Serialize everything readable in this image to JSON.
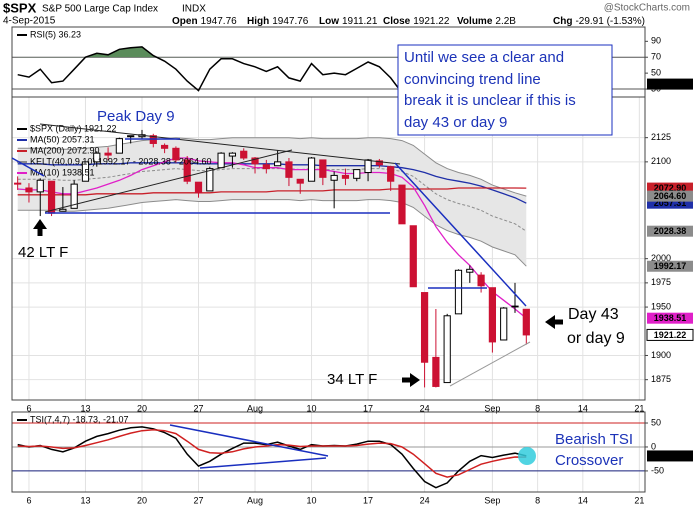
{
  "header": {
    "symbol": "$SPX",
    "name": "S&P 500 Large Cap Index",
    "exchange": "INDX",
    "source": "@StockCharts.com",
    "date": "4-Sep-2015",
    "quote": [
      {
        "label": "Open",
        "value": "1947.76"
      },
      {
        "label": "High",
        "value": "1947.76"
      },
      {
        "label": "Low",
        "value": "1911.21"
      },
      {
        "label": "Close",
        "value": "1921.22"
      },
      {
        "label": "Volume",
        "value": "2.2B"
      },
      {
        "label": "Chg",
        "value": "-29.91 (-1.53%)"
      }
    ]
  },
  "annotations": {
    "peak": "Peak Day 9",
    "left": "42 LT F",
    "bottom": "34 LT F",
    "right": [
      "Day 43",
      "or day 9"
    ],
    "box": [
      "Until we see a clear and",
      "convincing trend line",
      "break it is unclear if this is",
      "day 43 or day 9"
    ],
    "tsi": [
      "Bearish TSI",
      "Crossover"
    ]
  },
  "chart_data": [
    {
      "type": "line",
      "ylim": [
        20,
        108
      ],
      "yticks": [
        90,
        70,
        50,
        30
      ],
      "grid": false,
      "reference_lines": [
        {
          "value": 70,
          "color": "#555555",
          "fill": "#5b8c5b",
          "side": "above"
        },
        {
          "value": 30,
          "color": "#555555",
          "fill": "#a04e4e",
          "side": "below"
        }
      ],
      "series": [
        {
          "name": "RSI(5) 36.23",
          "color": "#000000",
          "end_label": "36.23",
          "values": [
            48,
            45,
            55,
            38,
            40,
            55,
            70,
            75,
            73,
            80,
            82,
            83,
            72,
            65,
            55,
            40,
            28,
            55,
            68,
            68,
            62,
            58,
            52,
            58,
            44,
            40,
            62,
            48,
            50,
            48,
            56,
            64,
            58,
            44,
            25,
            22,
            22,
            24,
            35,
            52,
            53,
            45,
            28,
            43,
            44,
            36.23
          ]
        }
      ]
    },
    {
      "type": "candlestick",
      "legend_label": "$SPX (Daily) 1921.22",
      "close_label": "1921.22",
      "ylim": [
        1854,
        2167
      ],
      "yticks": [
        2125,
        2100,
        2000,
        1975,
        1950,
        1900,
        1875
      ],
      "grid": true,
      "up_color": "#000000",
      "down_color": "#cc1133",
      "categories": [
        null,
        "6",
        null,
        null,
        null,
        null,
        "13",
        null,
        null,
        null,
        null,
        "20",
        null,
        null,
        null,
        null,
        "27",
        null,
        null,
        null,
        null,
        "Aug",
        null,
        null,
        null,
        null,
        "10",
        null,
        null,
        null,
        null,
        "17",
        null,
        null,
        null,
        null,
        "24",
        null,
        null,
        null,
        null,
        null,
        "Sep",
        null,
        null,
        null,
        "8",
        null,
        null,
        null,
        "14",
        null,
        null,
        null,
        null,
        "21"
      ],
      "open": [
        2078,
        2073,
        2069,
        2080,
        2049,
        2052,
        2080,
        2100,
        2109,
        2109,
        2126,
        2126,
        2127,
        2117,
        2114,
        2102,
        2079,
        2070,
        2094,
        2106,
        2111,
        2104,
        2097,
        2096,
        2100,
        2082,
        2080,
        2102,
        2081,
        2086,
        2083,
        2089,
        2101,
        2095,
        2076,
        2034,
        1965,
        1898,
        1872,
        1943,
        1986,
        1983,
        1970,
        1916,
        1951,
        1947.76,
        null,
        null,
        null,
        null,
        null,
        null,
        null,
        null,
        null,
        null
      ],
      "high": [
        2085,
        2078,
        2083,
        2080,
        2074,
        2081,
        2100,
        2111,
        2115,
        2125,
        2127,
        2133,
        2129,
        2119,
        2116,
        2106,
        2079,
        2095,
        2110,
        2110,
        2114,
        2105,
        2102,
        2112,
        2104,
        2082,
        2105,
        2102,
        2090,
        2093,
        2092,
        2103,
        2103,
        2096,
        2076,
        2034,
        1965,
        1948,
        1943,
        1989,
        1993,
        1986,
        1970,
        1950,
        1975,
        1947.76,
        null,
        null,
        null,
        null,
        null,
        null,
        null,
        null,
        null,
        null
      ],
      "low": [
        2071,
        2058,
        2044,
        2044,
        2049,
        2052,
        2080,
        2095,
        2102,
        2109,
        2119,
        2124,
        2115,
        2109,
        2099,
        2077,
        2063,
        2070,
        2094,
        2094,
        2102,
        2088,
        2088,
        2096,
        2075,
        2067,
        2080,
        2076,
        2052,
        2076,
        2080,
        2080,
        2094,
        2070,
        2036,
        1971,
        1867,
        1867,
        1872,
        1943,
        1975,
        1965,
        1903,
        1916,
        1944,
        1911.21,
        null,
        null,
        null,
        null,
        null,
        null,
        null,
        null,
        null,
        null
      ],
      "close": [
        2077,
        2069,
        2081,
        2047,
        2051,
        2077,
        2100,
        2109,
        2107,
        2124,
        2127,
        2128,
        2119,
        2114,
        2102,
        2080,
        2068,
        2093,
        2109,
        2109,
        2104,
        2098,
        2093,
        2100,
        2084,
        2078,
        2104,
        2084,
        2086,
        2083,
        2092,
        2102,
        2097,
        2080,
        2036,
        1971,
        1893,
        1868,
        1941,
        1988,
        1989,
        1972,
        1914,
        1949,
        1951,
        1921.22,
        null,
        null,
        null,
        null,
        null,
        null,
        null,
        null,
        null,
        null
      ],
      "channel": {
        "name": "KELT(40,0.9,10) 1992.17 - 2028.38 - 2064.60",
        "color": "#8c8c8c",
        "fill": "#e6e6e6",
        "end_labels": [
          "2064.60",
          "2028.38",
          "1992.17"
        ],
        "upper": [
          2114,
          2114,
          2114,
          2114,
          2113,
          2113,
          2114,
          2115,
          2116,
          2118,
          2120,
          2122,
          2123,
          2124,
          2125,
          2124,
          2123,
          2123,
          2124,
          2125,
          2125,
          2125,
          2125,
          2125,
          2125,
          2124,
          2125,
          2124,
          2124,
          2124,
          2124,
          2125,
          2125,
          2124,
          2122,
          2117,
          2108,
          2099,
          2093,
          2089,
          2086,
          2082,
          2076,
          2072,
          2068,
          2064.6,
          null,
          null,
          null,
          null,
          null,
          null,
          null,
          null,
          null,
          null
        ],
        "middle": [
          2082,
          2082,
          2082,
          2082,
          2081,
          2081,
          2082,
          2083,
          2084,
          2086,
          2088,
          2090,
          2091,
          2092,
          2093,
          2092,
          2091,
          2091,
          2092,
          2093,
          2093,
          2093,
          2093,
          2093,
          2093,
          2092,
          2093,
          2092,
          2092,
          2092,
          2092,
          2093,
          2093,
          2092,
          2090,
          2085,
          2076,
          2067,
          2061,
          2057,
          2054,
          2050,
          2044,
          2040,
          2036,
          2028.38,
          null,
          null,
          null,
          null,
          null,
          null,
          null,
          null,
          null,
          null
        ],
        "lower": [
          2050,
          2050,
          2050,
          2050,
          2049,
          2049,
          2050,
          2051,
          2052,
          2054,
          2056,
          2058,
          2059,
          2060,
          2061,
          2060,
          2059,
          2059,
          2060,
          2061,
          2061,
          2061,
          2061,
          2061,
          2061,
          2060,
          2061,
          2060,
          2060,
          2060,
          2060,
          2061,
          2061,
          2060,
          2058,
          2053,
          2044,
          2035,
          2029,
          2025,
          2022,
          2018,
          2012,
          2008,
          2004,
          1992.17,
          null,
          null,
          null,
          null,
          null,
          null,
          null,
          null,
          null,
          null
        ]
      },
      "series": [
        {
          "name": "MA(50) 2057.31",
          "color": "#1f2fa8",
          "end_label": "2057.31",
          "values": [
            2098,
            2098,
            2098,
            2097,
            2097,
            2097,
            2097,
            2098,
            2098,
            2098,
            2099,
            2099,
            2099,
            2099,
            2099,
            2099,
            2098,
            2098,
            2098,
            2098,
            2098,
            2098,
            2098,
            2098,
            2097,
            2097,
            2097,
            2096,
            2096,
            2096,
            2096,
            2096,
            2096,
            2095,
            2094,
            2092,
            2089,
            2085,
            2082,
            2080,
            2078,
            2075,
            2071,
            2067,
            2063,
            2057.31,
            null,
            null,
            null,
            null,
            null,
            null,
            null,
            null,
            null,
            null
          ]
        },
        {
          "name": "MA(200) 2072.90",
          "color": "#c8202a",
          "end_label": "2072.90",
          "values": [
            2066,
            2066,
            2066,
            2066,
            2066,
            2066,
            2066,
            2067,
            2067,
            2067,
            2067,
            2067,
            2068,
            2068,
            2068,
            2068,
            2068,
            2068,
            2069,
            2069,
            2069,
            2069,
            2069,
            2070,
            2070,
            2070,
            2070,
            2070,
            2071,
            2071,
            2071,
            2071,
            2071,
            2072,
            2072,
            2072,
            2072,
            2072,
            2072,
            2073,
            2073,
            2073,
            2073,
            2073,
            2073,
            2072.9,
            null,
            null,
            null,
            null,
            null,
            null,
            null,
            null,
            null,
            null
          ]
        },
        {
          "name": "MA(10) 1938.51",
          "color": "#e020c8",
          "end_label": "1938.51",
          "values": [
            2072,
            2071,
            2071,
            2069,
            2067,
            2067,
            2070,
            2073,
            2077,
            2081,
            2086,
            2092,
            2096,
            2100,
            2104,
            2104,
            2101,
            2100,
            2099,
            2099,
            2097,
            2094,
            2094,
            2094,
            2092,
            2092,
            2092,
            2092,
            2090,
            2088,
            2088,
            2089,
            2089,
            2088,
            2084,
            2074,
            2055,
            2033,
            2017,
            2004,
            1993,
            1979,
            1966,
            1957,
            1948,
            1938.51,
            null,
            null,
            null,
            null,
            null,
            null,
            null,
            null,
            null,
            null
          ]
        }
      ]
    },
    {
      "type": "line",
      "legend_label": "TSI(7,4,7) -18.73, -21.07",
      "ylim": [
        -94,
        73
      ],
      "yticks": [
        50,
        0,
        -50
      ],
      "grid": true,
      "categories": [
        null,
        "6",
        null,
        null,
        null,
        null,
        "13",
        null,
        null,
        null,
        null,
        "20",
        null,
        null,
        null,
        null,
        "27",
        null,
        null,
        null,
        null,
        "Aug",
        null,
        null,
        null,
        null,
        "10",
        null,
        null,
        null,
        null,
        "17",
        null,
        null,
        null,
        null,
        "24",
        null,
        null,
        null,
        null,
        null,
        "Sep",
        null,
        null,
        null,
        "8",
        null,
        null,
        null,
        "14",
        null,
        null,
        null,
        null,
        "21"
      ],
      "reference_lines": [
        {
          "value": 50,
          "color": "#cc2222"
        },
        {
          "value": 0,
          "color": "#999999"
        },
        {
          "value": -50,
          "color": "#1a237e"
        }
      ],
      "series": [
        {
          "color": "#000000",
          "end_label": "-18.73",
          "values": [
            5,
            0,
            3,
            -5,
            -10,
            -2,
            12,
            22,
            28,
            35,
            40,
            42,
            38,
            30,
            18,
            -15,
            -40,
            -30,
            -15,
            -3,
            8,
            8,
            5,
            10,
            2,
            -5,
            5,
            2,
            3,
            2,
            6,
            12,
            12,
            5,
            -15,
            -45,
            -72,
            -85,
            -75,
            -50,
            -30,
            -18,
            -22,
            -17,
            -13,
            -18.73,
            null,
            null,
            null,
            null,
            null,
            null,
            null,
            null,
            null,
            null
          ]
        },
        {
          "color": "#d02020",
          "values": [
            2,
            1,
            2,
            0,
            -3,
            -2,
            3,
            9,
            15,
            22,
            29,
            34,
            36,
            34,
            28,
            12,
            -5,
            -12,
            -13,
            -10,
            -4,
            0,
            2,
            5,
            4,
            1,
            2,
            2,
            2,
            2,
            3,
            6,
            8,
            7,
            0,
            -15,
            -35,
            -55,
            -63,
            -58,
            -47,
            -36,
            -30,
            -25,
            -21,
            -21.07,
            null,
            null,
            null,
            null,
            null,
            null,
            null,
            null,
            null,
            null
          ]
        }
      ]
    }
  ]
}
